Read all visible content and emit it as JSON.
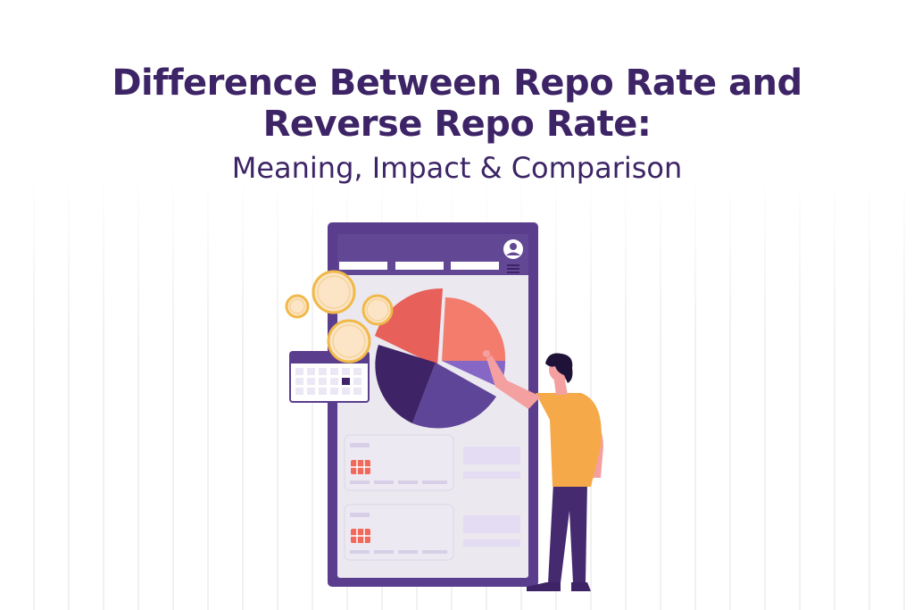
{
  "heading": {
    "title_line1": "Difference Between Repo Rate and",
    "title_line2": "Reverse Repo Rate:",
    "subtitle": "Meaning, Impact & Comparison"
  },
  "illustration": {
    "icons": [
      "phone-screen",
      "pie-chart",
      "coins",
      "calendar-icon",
      "user-icon",
      "menu-icon",
      "card-chip-icon",
      "person-pointing"
    ],
    "colors": {
      "brand_purple": "#3d2466",
      "phone_frame": "#5a3d8c",
      "pie_coral": "#e85d58",
      "pie_salmon": "#f47c6c",
      "pie_dark": "#3e2466",
      "pie_mid": "#5e4597",
      "pie_light": "#8667c6",
      "coin_gold": "#f0b94a",
      "shirt_orange": "#f5a948"
    }
  }
}
